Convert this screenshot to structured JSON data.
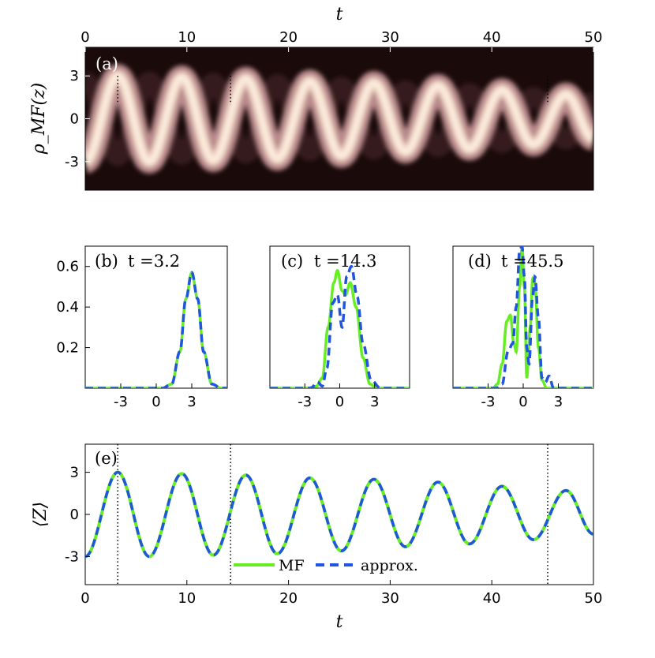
{
  "colors": {
    "mf": "#66ee22",
    "approx": "#2255dd",
    "heatmap_low": "#1a0a0a",
    "heatmap_high": "#fff4e8"
  },
  "chart_data": [
    {
      "id": "a",
      "type": "heatmap",
      "panel_label": "(a)",
      "xlabel": "t",
      "ylabel": "ρ_MF(z)",
      "xlim": [
        0,
        50
      ],
      "ylim": [
        -5,
        5
      ],
      "x_ticks": [
        "0",
        "10",
        "20",
        "30",
        "40",
        "50"
      ],
      "y_ticks": [
        "3",
        "0",
        "-3"
      ],
      "x_axis_position": "top",
      "trajectory": {
        "x": [
          0,
          3.2,
          6.3,
          9.5,
          12.6,
          15.8,
          18.9,
          22.1,
          25.2,
          28.4,
          31.5,
          34.7,
          37.8,
          41,
          44.1,
          47.3,
          50
        ],
        "y": [
          -3,
          3,
          -3,
          2.9,
          -2.9,
          2.8,
          -2.8,
          2.6,
          -2.6,
          2.5,
          -2.3,
          2.3,
          -2.1,
          2,
          -1.8,
          1.7,
          -1.4
        ]
      },
      "markers_t": [
        3.2,
        14.3,
        45.5
      ]
    },
    {
      "id": "b",
      "type": "line",
      "panel_label": "(b)",
      "title": "t =3.2",
      "xlim": [
        -6,
        6
      ],
      "ylim": [
        0,
        0.7
      ],
      "x_ticks": [
        "-3",
        "0",
        "3"
      ],
      "y_ticks": [
        "0.2",
        "0.4",
        "0.6"
      ],
      "series": [
        {
          "name": "MF",
          "x": [
            -6,
            0.5,
            1.3,
            2,
            2.5,
            3,
            3.5,
            4,
            4.7,
            5.5,
            6
          ],
          "y": [
            0,
            0,
            0.02,
            0.18,
            0.44,
            0.57,
            0.44,
            0.18,
            0.02,
            0,
            0
          ]
        },
        {
          "name": "approx.",
          "x": [
            -6,
            0.5,
            1.3,
            2,
            2.5,
            3,
            3.5,
            4,
            4.7,
            5.5,
            6
          ],
          "y": [
            0,
            0,
            0.02,
            0.18,
            0.44,
            0.57,
            0.44,
            0.18,
            0.02,
            0,
            0
          ]
        }
      ]
    },
    {
      "id": "c",
      "type": "line",
      "panel_label": "(c)",
      "title": "t =14.3",
      "xlim": [
        -6,
        6
      ],
      "ylim": [
        0,
        0.7
      ],
      "x_ticks": [
        "-3",
        "0",
        "3"
      ],
      "y_ticks": [],
      "series": [
        {
          "name": "MF",
          "x": [
            -6,
            -2.8,
            -2,
            -1.5,
            -1,
            -0.5,
            -0.2,
            0.2,
            0.5,
            0.9,
            1.4,
            2,
            2.6,
            3.2,
            6
          ],
          "y": [
            0,
            0,
            0.01,
            0.05,
            0.3,
            0.52,
            0.58,
            0.48,
            0.46,
            0.52,
            0.4,
            0.15,
            0.02,
            0,
            0
          ]
        },
        {
          "name": "approx.",
          "x": [
            -6,
            -2.5,
            -1.9,
            -1.5,
            -1.1,
            -0.6,
            -0.2,
            0.2,
            0.6,
            1,
            1.5,
            2,
            2.7,
            3.5,
            6
          ],
          "y": [
            0,
            0,
            0.03,
            0.01,
            0.1,
            0.42,
            0.46,
            0.3,
            0.55,
            0.6,
            0.45,
            0.22,
            0.04,
            0,
            0
          ]
        }
      ]
    },
    {
      "id": "d",
      "type": "line",
      "panel_label": "(d)",
      "title": "t =45.5",
      "xlim": [
        -6,
        6
      ],
      "ylim": [
        0,
        0.7
      ],
      "x_ticks": [
        "-3",
        "0",
        "3"
      ],
      "y_ticks": [],
      "series": [
        {
          "name": "MF",
          "x": [
            -6,
            -2.6,
            -2.2,
            -1.8,
            -1.4,
            -1.1,
            -0.8,
            -0.6,
            -0.3,
            -0.1,
            0.1,
            0.3,
            0.6,
            0.8,
            1,
            1.3,
            1.6,
            2,
            6
          ],
          "y": [
            0,
            0,
            0.02,
            0.12,
            0.33,
            0.36,
            0.22,
            0.18,
            0.5,
            0.7,
            0.5,
            0.05,
            0.3,
            0.54,
            0.52,
            0.2,
            0.04,
            0,
            0
          ]
        },
        {
          "name": "approx.",
          "x": [
            -6,
            -2.3,
            -1.8,
            -1.3,
            -0.9,
            -0.6,
            -0.3,
            -0.1,
            0.1,
            0.3,
            0.5,
            0.8,
            1,
            1.3,
            1.6,
            1.9,
            2.2,
            2.6,
            6
          ],
          "y": [
            0,
            0,
            0.02,
            0.18,
            0.22,
            0.4,
            0.68,
            0.7,
            0.55,
            0.2,
            0.12,
            0.45,
            0.55,
            0.35,
            0.05,
            0.03,
            0.06,
            0,
            0
          ]
        }
      ]
    },
    {
      "id": "e",
      "type": "line",
      "panel_label": "(e)",
      "xlabel": "t",
      "ylabel": "⟨Z⟩",
      "xlim": [
        0,
        50
      ],
      "ylim": [
        -5,
        5
      ],
      "x_ticks": [
        "0",
        "10",
        "20",
        "30",
        "40",
        "50"
      ],
      "y_ticks": [
        "3",
        "0",
        "-3"
      ],
      "legend": {
        "placement": "bottom-center",
        "entries": [
          "MF",
          "approx."
        ]
      },
      "markers_t": [
        3.2,
        14.3,
        45.5
      ],
      "series": [
        {
          "name": "MF",
          "x": [
            0,
            3.2,
            6.3,
            9.5,
            12.6,
            15.8,
            18.9,
            22.1,
            25.2,
            28.4,
            31.5,
            34.7,
            37.8,
            41,
            44.1,
            47.3,
            50
          ],
          "y": [
            -3,
            3,
            -3,
            2.9,
            -2.9,
            2.8,
            -2.8,
            2.6,
            -2.6,
            2.5,
            -2.3,
            2.3,
            -2.1,
            2,
            -1.8,
            1.7,
            -1.4
          ]
        },
        {
          "name": "approx.",
          "x": [
            0,
            3.2,
            6.3,
            9.5,
            12.6,
            15.8,
            18.9,
            22.1,
            25.2,
            28.4,
            31.5,
            34.7,
            37.8,
            41,
            44.1,
            47.3,
            50
          ],
          "y": [
            -3,
            3,
            -3,
            2.9,
            -2.9,
            2.8,
            -2.8,
            2.6,
            -2.6,
            2.5,
            -2.3,
            2.3,
            -2.1,
            2,
            -1.8,
            1.7,
            -1.4
          ]
        }
      ]
    }
  ]
}
